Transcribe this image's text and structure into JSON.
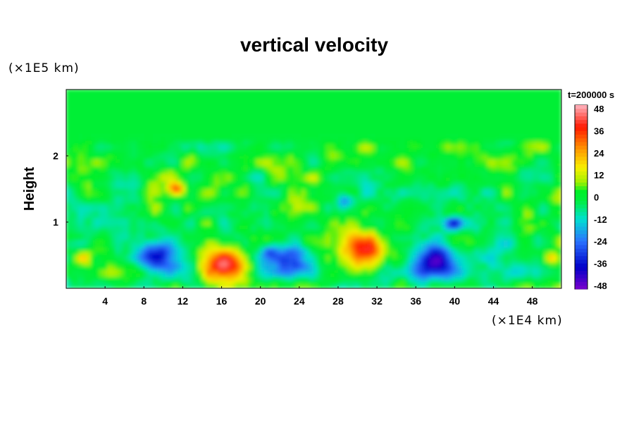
{
  "chart_data": {
    "type": "heatmap",
    "title": "vertical velocity",
    "ylabel": "Height",
    "xunit": "(×1E4 km)",
    "yunit": "(×1E5 km)",
    "time_label": "t=200000 s",
    "xlim": [
      0,
      51
    ],
    "ylim": [
      0,
      3
    ],
    "x_ticks": [
      4,
      8,
      12,
      16,
      20,
      24,
      28,
      32,
      36,
      40,
      44,
      48
    ],
    "x_tick_labels": [
      "4",
      "8",
      "12",
      "16",
      "20",
      "24",
      "28",
      "32",
      "36",
      "40",
      "44",
      "48"
    ],
    "y_ticks": [
      1,
      2
    ],
    "y_tick_labels": [
      "1",
      "2"
    ],
    "colorbar": {
      "min": -50,
      "max": 50,
      "ticks": [
        48,
        36,
        24,
        12,
        0,
        -12,
        -24,
        -36,
        -48
      ],
      "tick_labels": [
        "48",
        "36",
        "24",
        "12",
        "0",
        "-12",
        "-24",
        "-36",
        "-48"
      ]
    },
    "features": [
      {
        "x": 16.3,
        "y": 0.35,
        "value": 48
      },
      {
        "x": 30.9,
        "y": 0.58,
        "value": 42
      },
      {
        "x": 38.2,
        "y": 0.38,
        "value": -40
      },
      {
        "x": 9.5,
        "y": 0.52,
        "value": -30
      },
      {
        "x": 22.7,
        "y": 0.38,
        "value": -25
      },
      {
        "x": 1.8,
        "y": 0.45,
        "value": 18
      },
      {
        "x": 50.0,
        "y": 0.45,
        "value": 20
      },
      {
        "x": 11.3,
        "y": 1.5,
        "value": 30
      },
      {
        "x": 40.0,
        "y": 0.98,
        "value": -35
      },
      {
        "x": 28.8,
        "y": 1.32,
        "value": -20
      },
      {
        "x": 21.0,
        "y": 0.55,
        "value": -16
      },
      {
        "x": 25.5,
        "y": 1.65,
        "value": 14
      }
    ]
  }
}
